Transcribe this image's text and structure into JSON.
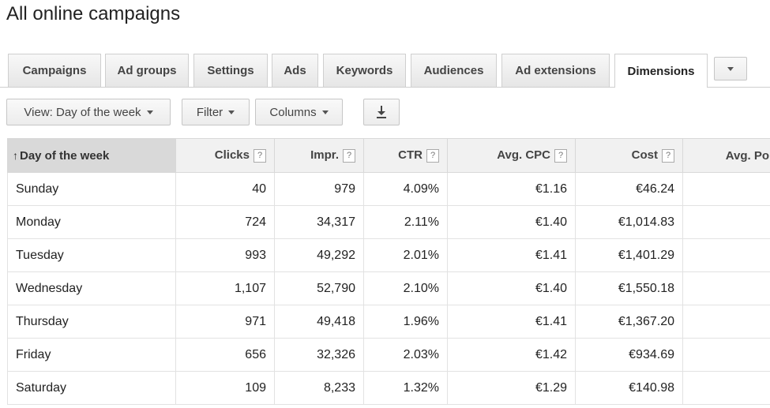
{
  "page": {
    "title": "All online campaigns"
  },
  "tabs": [
    {
      "label": "Campaigns"
    },
    {
      "label": "Ad groups"
    },
    {
      "label": "Settings"
    },
    {
      "label": "Ads"
    },
    {
      "label": "Keywords"
    },
    {
      "label": "Audiences"
    },
    {
      "label": "Ad extensions"
    },
    {
      "label": "Dimensions",
      "active": true
    }
  ],
  "toolbar": {
    "view_label": "View: Day of the week",
    "filter_label": "Filter",
    "columns_label": "Columns",
    "download_icon": "download-icon"
  },
  "table": {
    "headers": {
      "day": "Day of the week",
      "clicks": "Clicks",
      "impr": "Impr.",
      "ctr": "CTR",
      "avg_cpc": "Avg. CPC",
      "cost": "Cost",
      "avg_pos": "Avg. Po"
    },
    "help_glyph": "?",
    "sort_glyph": "↑",
    "rows": [
      {
        "day": "Sunday",
        "clicks": "40",
        "impr": "979",
        "ctr": "4.09%",
        "avg_cpc": "€1.16",
        "cost": "€46.24"
      },
      {
        "day": "Monday",
        "clicks": "724",
        "impr": "34,317",
        "ctr": "2.11%",
        "avg_cpc": "€1.40",
        "cost": "€1,014.83"
      },
      {
        "day": "Tuesday",
        "clicks": "993",
        "impr": "49,292",
        "ctr": "2.01%",
        "avg_cpc": "€1.41",
        "cost": "€1,401.29"
      },
      {
        "day": "Wednesday",
        "clicks": "1,107",
        "impr": "52,790",
        "ctr": "2.10%",
        "avg_cpc": "€1.40",
        "cost": "€1,550.18"
      },
      {
        "day": "Thursday",
        "clicks": "971",
        "impr": "49,418",
        "ctr": "1.96%",
        "avg_cpc": "€1.41",
        "cost": "€1,367.20"
      },
      {
        "day": "Friday",
        "clicks": "656",
        "impr": "32,326",
        "ctr": "2.03%",
        "avg_cpc": "€1.42",
        "cost": "€934.69"
      },
      {
        "day": "Saturday",
        "clicks": "109",
        "impr": "8,233",
        "ctr": "1.32%",
        "avg_cpc": "€1.29",
        "cost": "€140.98"
      }
    ]
  }
}
